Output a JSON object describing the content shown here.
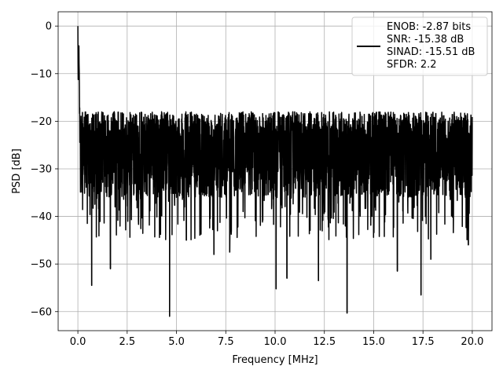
{
  "chart_data": {
    "type": "line",
    "title": "",
    "xlabel": "Frequency [MHz]",
    "ylabel": "PSD [dB]",
    "xlim": [
      -1.0,
      21.0
    ],
    "ylim": [
      -64.0,
      3.0
    ],
    "xticks": [
      0.0,
      2.5,
      5.0,
      7.5,
      10.0,
      12.5,
      15.0,
      17.5,
      20.0
    ],
    "xtick_labels": [
      "0.0",
      "2.5",
      "5.0",
      "7.5",
      "10.0",
      "12.5",
      "15.0",
      "17.5",
      "20.0"
    ],
    "yticks": [
      0,
      -10,
      -20,
      -30,
      -40,
      -50,
      -60
    ],
    "ytick_labels": [
      "0",
      "−10",
      "−20",
      "−30",
      "−40",
      "−50",
      "−60"
    ],
    "grid": true,
    "legend_position": "top-right",
    "line_color": "#000000",
    "legend_lines": [
      "ENOB: -2.87 bits",
      "SNR: -15.38 dB",
      "SINAD: -15.51 dB",
      "SFDR: 2.2"
    ],
    "series": [
      {
        "name": "ENOB: -2.87 bits\nSNR: -15.38 dB\nSINAD: -15.51 dB\nSFDR: 2.2",
        "noise_band": {
          "upper_db": -18,
          "typical_db": -25,
          "lower_db": -33
        },
        "x": [
          0.0,
          0.02,
          0.05,
          0.1,
          0.15,
          0.25,
          0.35,
          0.5,
          0.7,
          1.0,
          1.3,
          1.6,
          2.0,
          2.5,
          3.0,
          3.5,
          4.0,
          4.5,
          5.0,
          5.5,
          6.0,
          6.5,
          7.0,
          7.5,
          8.0,
          8.5,
          9.0,
          9.5,
          10.0,
          10.5,
          11.0,
          11.5,
          12.0,
          12.5,
          13.0,
          13.5,
          14.0,
          14.5,
          15.0,
          15.5,
          16.0,
          16.5,
          17.0,
          17.5,
          18.0,
          18.5,
          19.0,
          19.5,
          20.0
        ],
        "y": [
          0.0,
          -16.0,
          -6.0,
          -22.0,
          -12.0,
          -25.0,
          -20.0,
          -28.0,
          -22.0,
          -24.0,
          -21.0,
          -30.0,
          -24.0,
          -26.0,
          -22.0,
          -27.0,
          -23.0,
          -25.0,
          -29.0,
          -22.0,
          -26.0,
          -24.0,
          -28.0,
          -23.0,
          -25.0,
          -27.0,
          -22.0,
          -26.0,
          -24.0,
          -29.0,
          -23.0,
          -25.0,
          -27.0,
          -22.0,
          -26.0,
          -24.0,
          -28.0,
          -23.0,
          -25.0,
          -27.0,
          -22.0,
          -26.0,
          -24.0,
          -28.0,
          -23.0,
          -25.0,
          -27.0,
          -24.0,
          -26.0
        ],
        "dips": [
          {
            "x": 0.7,
            "y": -54.5
          },
          {
            "x": 1.65,
            "y": -51.0
          },
          {
            "x": 4.65,
            "y": -61.0
          },
          {
            "x": 5.5,
            "y": -45.0
          },
          {
            "x": 6.9,
            "y": -48.0
          },
          {
            "x": 7.7,
            "y": -47.5
          },
          {
            "x": 10.05,
            "y": -55.2
          },
          {
            "x": 10.6,
            "y": -53.0
          },
          {
            "x": 12.2,
            "y": -53.5
          },
          {
            "x": 13.65,
            "y": -60.3
          },
          {
            "x": 16.2,
            "y": -51.5
          },
          {
            "x": 17.4,
            "y": -56.5
          },
          {
            "x": 17.9,
            "y": -49.0
          },
          {
            "x": 19.8,
            "y": -46.0
          }
        ]
      }
    ]
  }
}
